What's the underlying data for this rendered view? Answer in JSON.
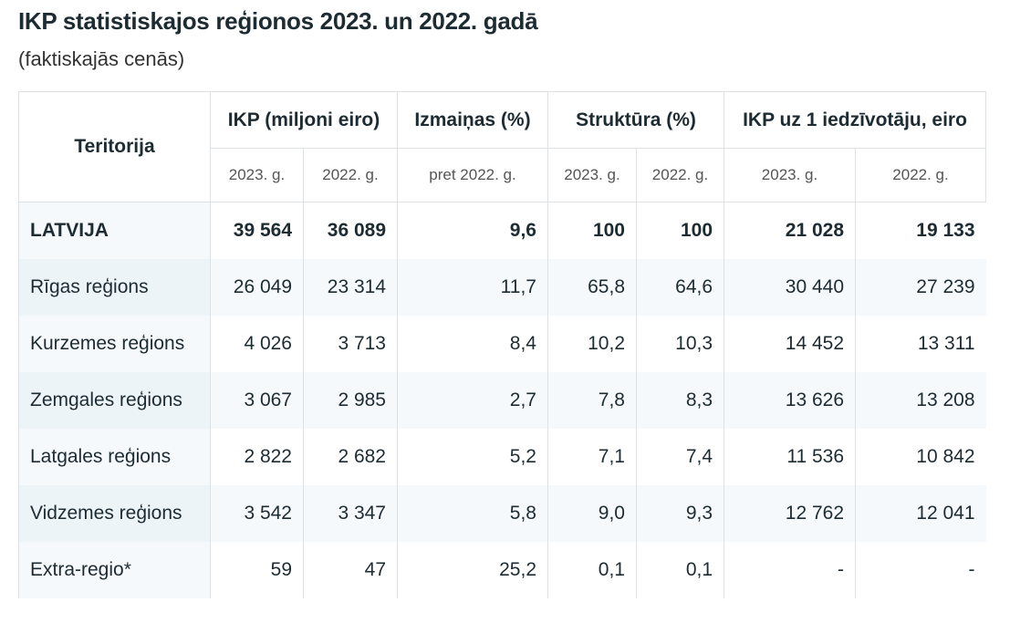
{
  "title": "IKP statistiskajos reģionos 2023. un 2022. gadā",
  "subtitle": "(faktiskajās cenās)",
  "headers": {
    "territory": "Teritorija",
    "gdp": "IKP (miljoni eiro)",
    "change": "Izmaiņas (%)",
    "structure": "Struktūra (%)",
    "per_capita": "IKP uz 1 iedzīvotāju, eiro",
    "y2023": "2023. g.",
    "y2022": "2022. g.",
    "vs2022": "pret 2022. g."
  },
  "rows": [
    [
      "LATVIJA",
      "39 564",
      "36 089",
      "9,6",
      "100",
      "100",
      "21 028",
      "19 133"
    ],
    [
      "Rīgas reģions",
      "26 049",
      "23 314",
      "11,7",
      "65,8",
      "64,6",
      "30 440",
      "27 239"
    ],
    [
      "Kurzemes reģions",
      "4 026",
      "3 713",
      "8,4",
      "10,2",
      "10,3",
      "14 452",
      "13 311"
    ],
    [
      "Zemgales reģions",
      "3 067",
      "2 985",
      "2,7",
      "7,8",
      "8,3",
      "13 626",
      "13 208"
    ],
    [
      "Latgales reģions",
      "2 822",
      "2 682",
      "5,2",
      "7,1",
      "7,4",
      "11 536",
      "10 842"
    ],
    [
      "Vidzemes reģions",
      "3 542",
      "3 347",
      "5,8",
      "9,0",
      "9,3",
      "12 762",
      "12 041"
    ],
    [
      "Extra-regio*",
      "59",
      "47",
      "25,2",
      "0,1",
      "0,1",
      "-",
      "-"
    ]
  ]
}
